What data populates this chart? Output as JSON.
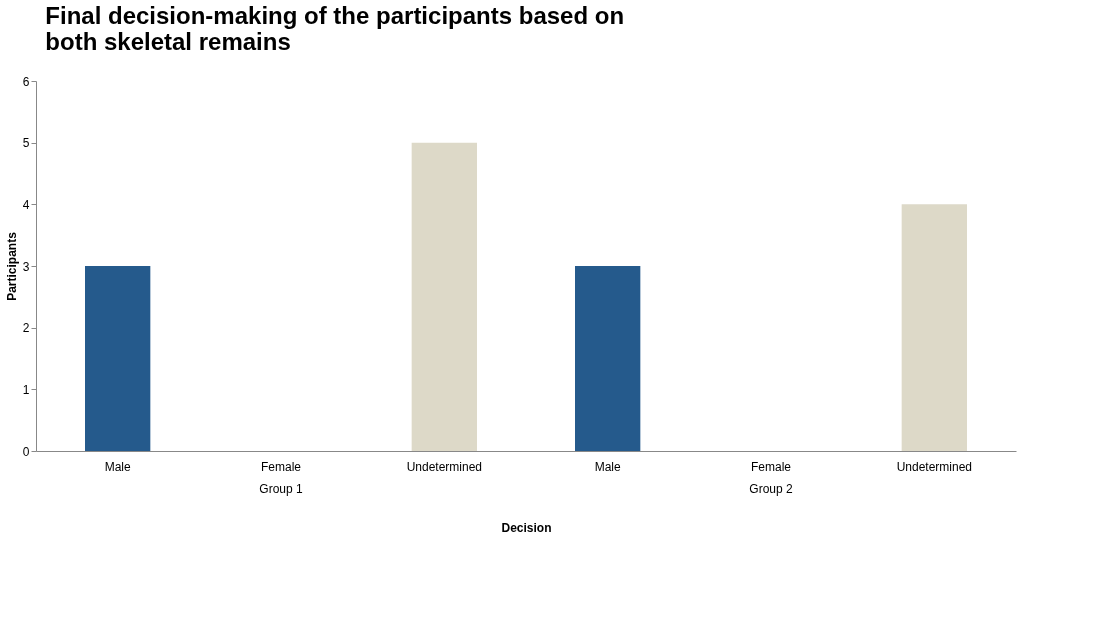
{
  "chart_data": {
    "type": "bar",
    "title": "Final decision-making of the participants based on both skeletal remains",
    "categories": [
      "Male",
      "Female",
      "Undetermined",
      "Male",
      "Female",
      "Undetermined"
    ],
    "values": [
      3,
      0,
      5,
      3,
      0,
      4
    ],
    "colors": [
      "#255a8c",
      "#8c3a36",
      "#ddd9c8",
      "#255a8c",
      "#8c3a36",
      "#ddd9c8"
    ],
    "xlabel": "Decision",
    "ylabel": "Participants",
    "ylim": [
      0,
      6
    ],
    "yticks": [
      0,
      1,
      2,
      3,
      4,
      5,
      6
    ],
    "grid": false,
    "legend": false,
    "annotations": [
      "Group 1",
      "Group 2"
    ]
  }
}
